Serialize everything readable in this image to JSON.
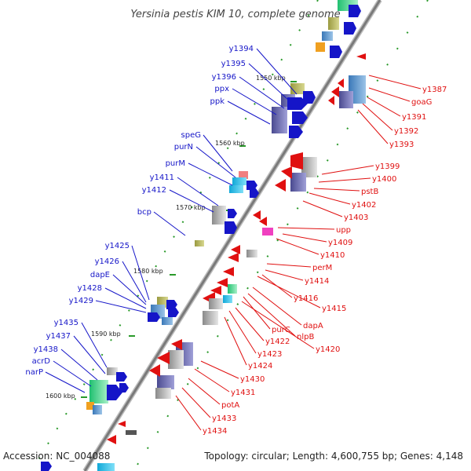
{
  "title": "Yersinia pestis KIM 10, complete genome",
  "footer": {
    "accession": "Accession: NC_004088",
    "stats": "Topology: circular; Length: 4,600,755 bp; Genes: 4,148"
  },
  "ruler": [
    "1550 kbp",
    "1560 kbp",
    "1570 kbp",
    "1580 kbp",
    "1590 kbp",
    "1600 kbp"
  ],
  "left_labels": [
    "y1394",
    "y1395",
    "y1396",
    "ppx",
    "ppk",
    "speG",
    "purN",
    "purM",
    "y1411",
    "y1412",
    "bcp",
    "y1425",
    "y1426",
    "dapE",
    "y1428",
    "y1429",
    "y1435",
    "y1437",
    "y1438",
    "acrD",
    "narP"
  ],
  "right_labels": [
    "y1387",
    "goaG",
    "y1391",
    "y1392",
    "y1393",
    "y1399",
    "y1400",
    "pstB",
    "y1402",
    "y1403",
    "upp",
    "y1409",
    "y1410",
    "perM",
    "y1414",
    "y1416",
    "y1415",
    "dapA",
    "nlpB",
    "purC",
    "y1420",
    "y1422",
    "y1423",
    "y1424",
    "y1430",
    "y1431",
    "potA",
    "y1433",
    "y1434"
  ],
  "colors": {
    "forward_strand": "#1515c8",
    "reverse_strand": "#e01010",
    "backbone": "#808080",
    "tick": "#2a9a2a"
  }
}
